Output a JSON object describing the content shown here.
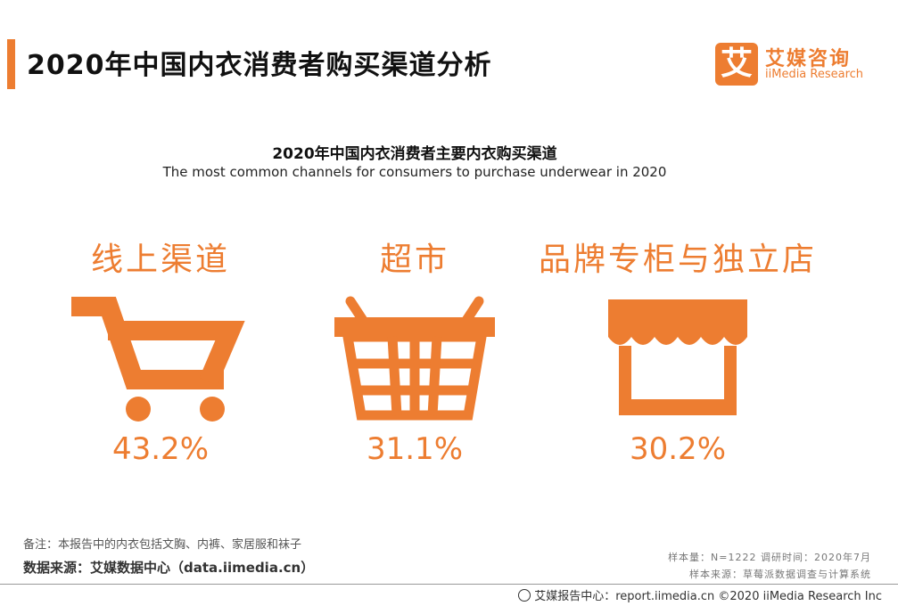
{
  "header": {
    "title": "2020年中国内衣消费者购买渠道分析",
    "brand_cn": "艾媒咨询",
    "brand_en": "iiMedia Research",
    "brand_mark": "艾",
    "accent_color": "#ED7D31"
  },
  "chart_data": {
    "type": "table",
    "title": "2020年中国内衣消费者主要内衣购买渠道",
    "subtitle": "The most common channels for consumers to purchase underwear in 2020",
    "categories": [
      "线上渠道",
      "超市",
      "品牌专柜与独立店"
    ],
    "values": [
      43.2,
      31.1,
      30.2
    ],
    "value_labels": [
      "43.2%",
      "31.1%",
      "30.2%"
    ],
    "icons": [
      "shopping-cart-icon",
      "shopping-basket-icon",
      "storefront-icon"
    ],
    "color": "#ED7D31"
  },
  "footer": {
    "note": "备注：本报告中的内衣包括文胸、内裤、家居服和袜子",
    "source": "数据来源：艾媒数据中心（data.iimedia.cn）",
    "sample": "样本量：N=1222   调研时间：2020年7月",
    "sample_source": "样本来源：草莓派数据调查与计算系统",
    "copyright": "艾媒报告中心：report.iimedia.cn  ©2020  iiMedia Research  Inc"
  }
}
